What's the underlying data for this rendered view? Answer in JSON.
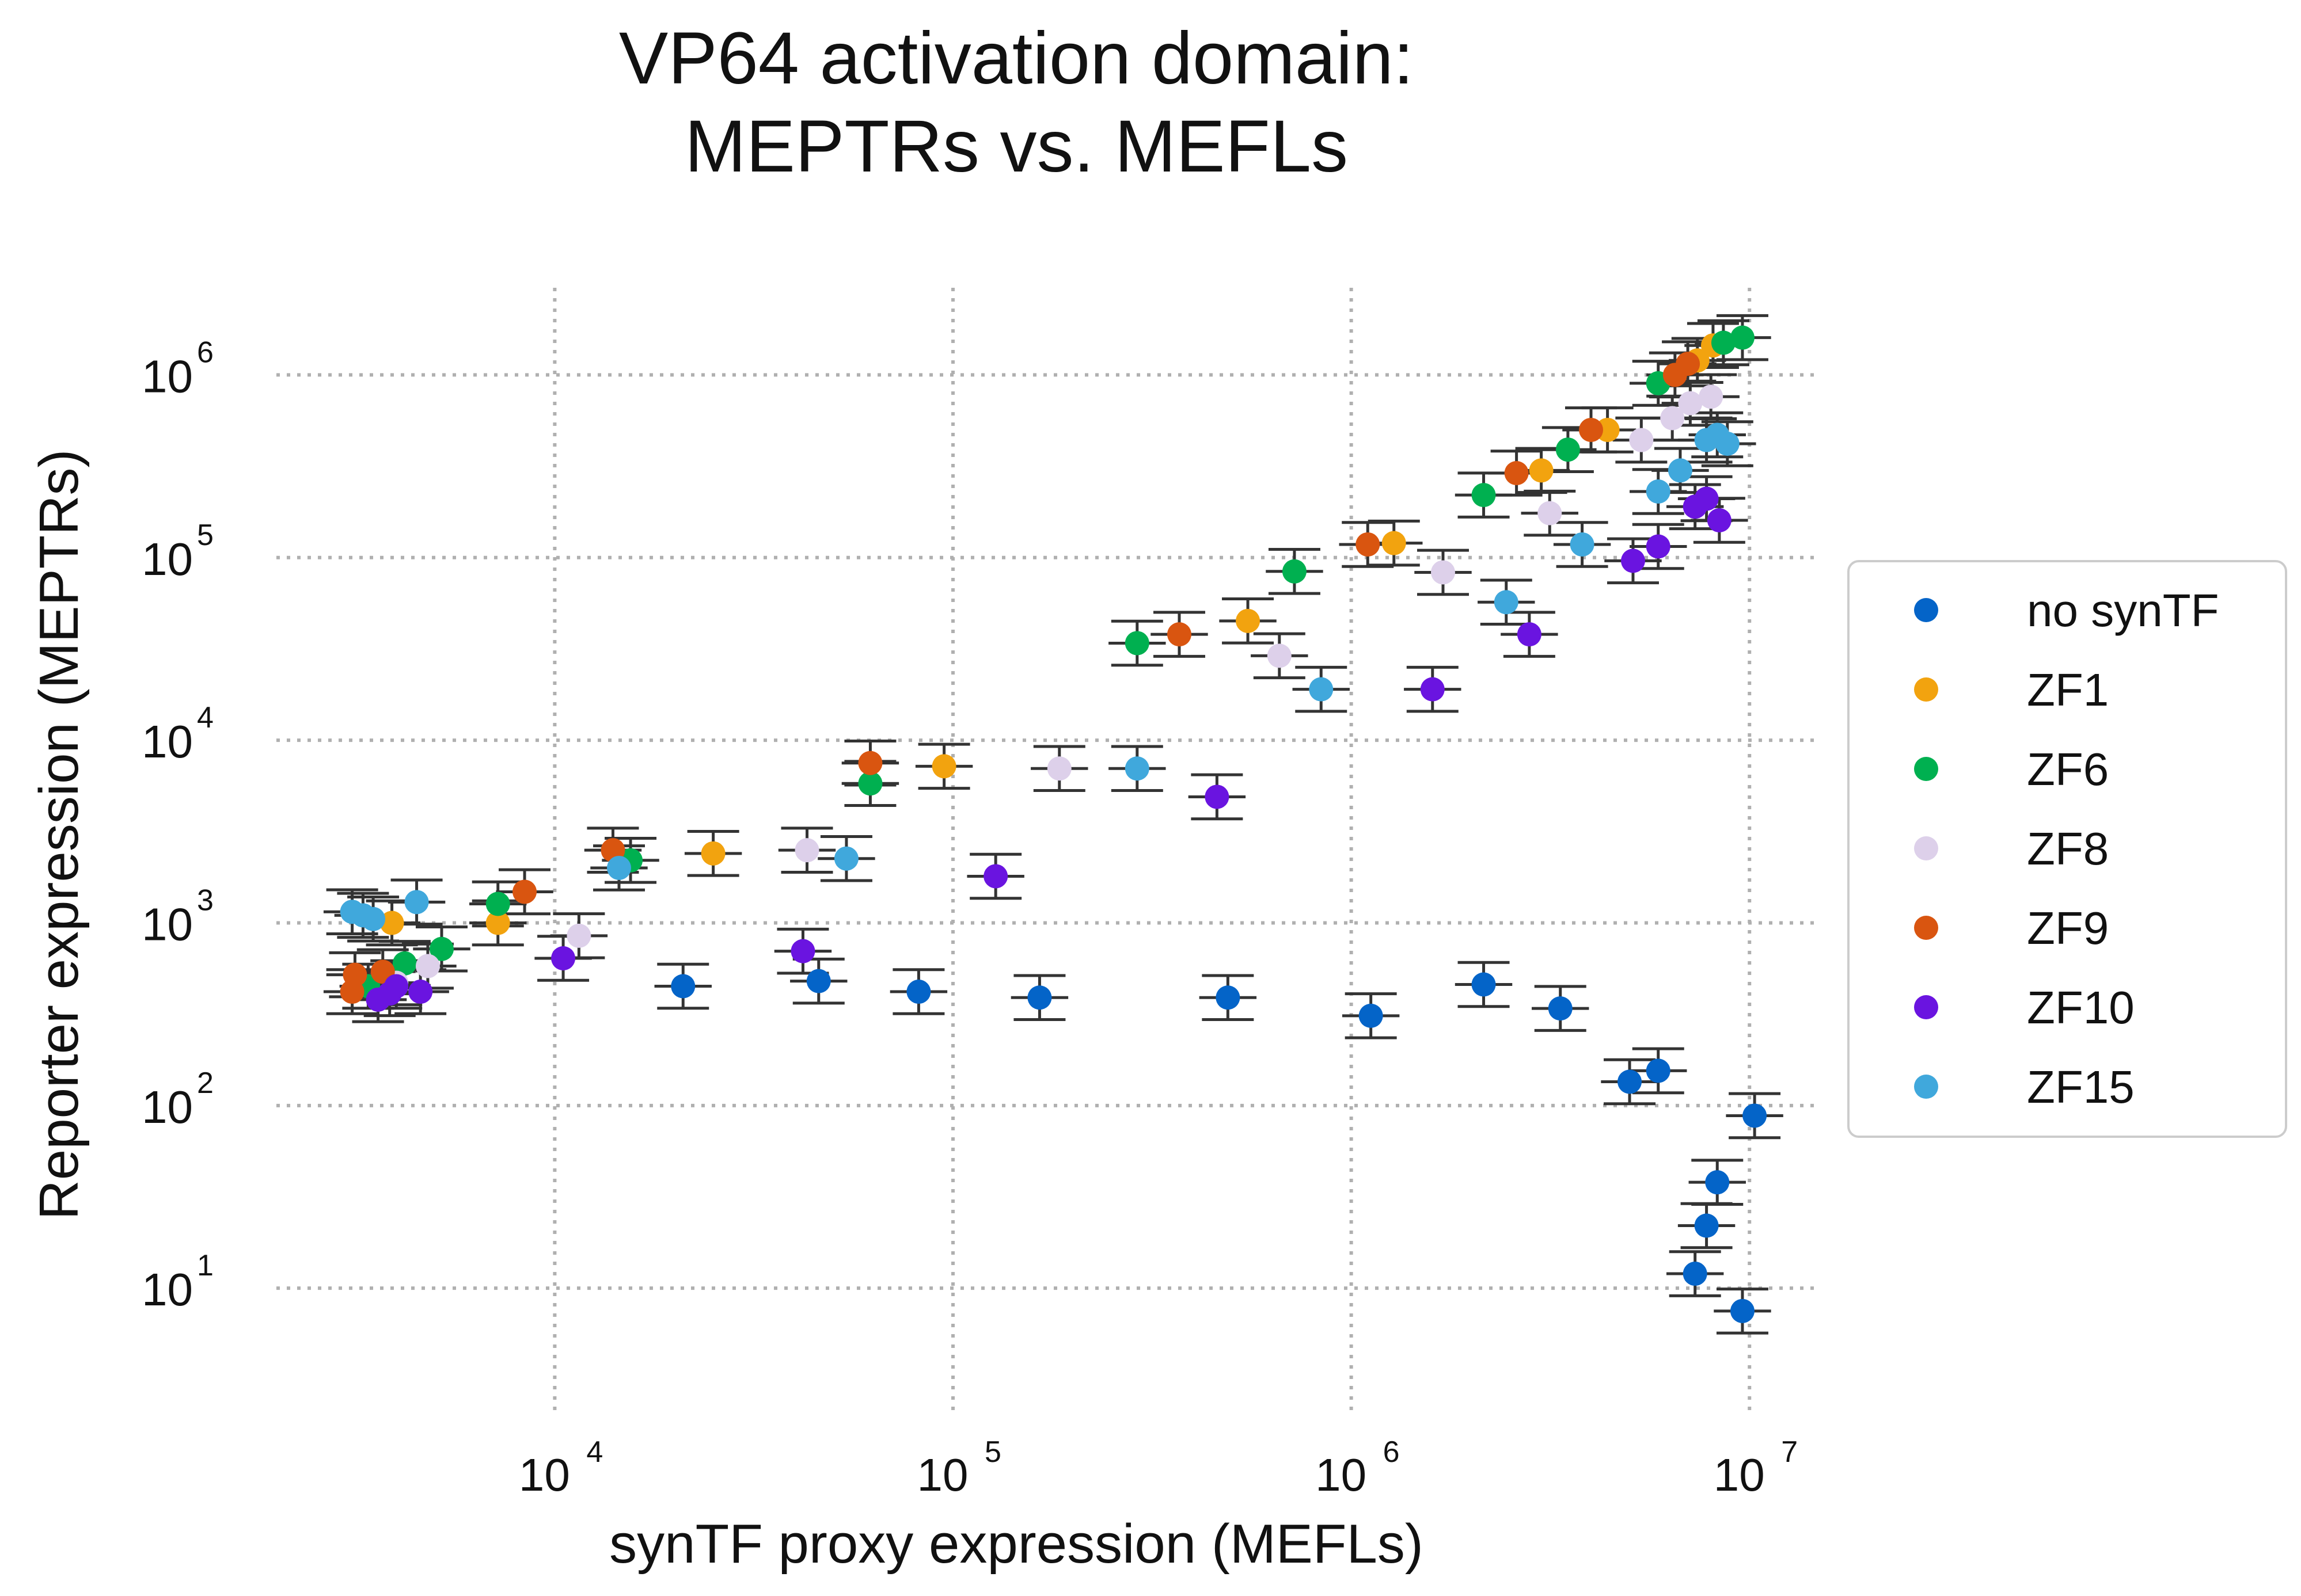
{
  "chart_data": {
    "type": "scatter",
    "title": [
      "VP64 activation domain:",
      "MEPTRs vs. MEFLs"
    ],
    "xlabel": "synTF proxy expression (MEFLs)",
    "ylabel": "Reporter expression (MEPTRs)",
    "xscale": "log",
    "yscale": "log",
    "xlim": [
      2000,
      15000000
    ],
    "ylim": [
      2,
      3000000
    ],
    "xticks": [
      {
        "value": 10000,
        "base": "10",
        "exp": "4"
      },
      {
        "value": 100000,
        "base": "10",
        "exp": "5"
      },
      {
        "value": 1000000,
        "base": "10",
        "exp": "6"
      },
      {
        "value": 10000000,
        "base": "10",
        "exp": "7"
      }
    ],
    "yticks": [
      {
        "value": 10,
        "base": "10",
        "exp": "1"
      },
      {
        "value": 100,
        "base": "10",
        "exp": "2"
      },
      {
        "value": 1000,
        "base": "10",
        "exp": "3"
      },
      {
        "value": 10000,
        "base": "10",
        "exp": "4"
      },
      {
        "value": 100000,
        "base": "10",
        "exp": "5"
      },
      {
        "value": 1000000,
        "base": "10",
        "exp": "6"
      }
    ],
    "grid": true,
    "error_bars": true,
    "legend_position": "right",
    "series": [
      {
        "name": "no synTF",
        "color": "#0464c8",
        "x": [
          21000,
          46000,
          82000,
          165000,
          490000,
          1120000,
          2150000,
          3350000,
          5000000,
          5900000,
          7300000,
          7800000,
          8300000,
          9600000,
          10300000
        ],
        "y": [
          450,
          480,
          420,
          390,
          390,
          310,
          460,
          340,
          135,
          155,
          12,
          22,
          38,
          7.5,
          88
        ]
      },
      {
        "name": "ZF1",
        "color": "#f2a30f",
        "x": [
          3900,
          7200,
          25000,
          95000,
          550000,
          1280000,
          3000000,
          4400000,
          7400000,
          8100000
        ],
        "y": [
          1000,
          1000,
          2400,
          7200,
          45000,
          120000,
          300000,
          500000,
          1200000,
          1450000
        ],
        "xerr_rel": 1.2,
        "yerr_rel": 1.4
      },
      {
        "name": "ZF6",
        "color": "#00b050",
        "x": [
          3400,
          4200,
          5200,
          7200,
          15500,
          62000,
          290000,
          720000,
          2150000,
          3500000,
          5900000,
          8600000,
          9600000
        ],
        "y": [
          450,
          600,
          720,
          1270,
          2200,
          5800,
          34000,
          84000,
          220000,
          390000,
          900000,
          1500000,
          1600000
        ]
      },
      {
        "name": "ZF8",
        "color": "#ddd0ea",
        "x": [
          4000,
          4800,
          11500,
          43000,
          185000,
          660000,
          1700000,
          3150000,
          5350000,
          6400000,
          7100000,
          8000000
        ],
        "y": [
          470,
          580,
          850,
          2500,
          7000,
          29000,
          83000,
          175000,
          440000,
          580000,
          700000,
          760000
        ]
      },
      {
        "name": "ZF9",
        "color": "#d95510",
        "x": [
          3100,
          3150,
          3700,
          8400,
          14000,
          62000,
          370000,
          1100000,
          2600000,
          4000000,
          6500000,
          7000000
        ],
        "y": [
          420,
          520,
          540,
          1480,
          2500,
          7500,
          38000,
          118000,
          290000,
          500000,
          1000000,
          1150000
        ]
      },
      {
        "name": "ZF10",
        "color": "#6a14e0",
        "x": [
          3600,
          3850,
          4000,
          4600,
          10500,
          42000,
          128000,
          460000,
          1600000,
          2800000,
          5100000,
          5900000,
          7300000,
          7800000,
          8400000
        ],
        "y": [
          380,
          410,
          450,
          420,
          640,
          700,
          1800,
          4900,
          19000,
          38000,
          96000,
          115000,
          190000,
          210000,
          160000
        ]
      },
      {
        "name": "ZF15",
        "color": "#40a8dc",
        "x": [
          3100,
          3300,
          3500,
          4500,
          14500,
          54000,
          290000,
          840000,
          2450000,
          3800000,
          5900000,
          6700000,
          7800000,
          8300000,
          8800000
        ],
        "y": [
          1150,
          1100,
          1050,
          1300,
          2000,
          2250,
          7000,
          19000,
          57000,
          118000,
          230000,
          300000,
          440000,
          470000,
          420000
        ]
      }
    ]
  }
}
